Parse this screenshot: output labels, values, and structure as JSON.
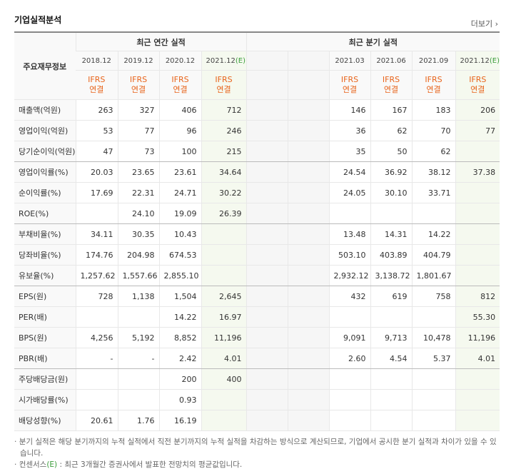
{
  "header": {
    "title": "기업실적분석",
    "more": "더보기"
  },
  "table": {
    "corner": "주요재무정보",
    "groups": [
      {
        "label": "최근 연간 실적",
        "span": 4
      },
      {
        "label": "최근 분기 실적",
        "span": 6
      }
    ],
    "columns": [
      {
        "period": "2018.12",
        "standard": "IFRS",
        "basis": "연결"
      },
      {
        "period": "2019.12",
        "standard": "IFRS",
        "basis": "연결"
      },
      {
        "period": "2020.12",
        "standard": "IFRS",
        "basis": "연결"
      },
      {
        "period": "2021.12",
        "estimate": "(E)",
        "standard": "IFRS",
        "basis": "연결"
      },
      null,
      null,
      {
        "period": "2021.03",
        "standard": "IFRS",
        "basis": "연결"
      },
      {
        "period": "2021.06",
        "standard": "IFRS",
        "basis": "연결"
      },
      {
        "period": "2021.09",
        "standard": "IFRS",
        "basis": "연결"
      },
      {
        "period": "2021.12",
        "estimate": "(E)",
        "standard": "IFRS",
        "basis": "연결"
      }
    ],
    "rows": [
      {
        "label": "매출액(억원)",
        "cells": [
          "263",
          "327",
          "406",
          "712",
          null,
          null,
          "146",
          "167",
          "183",
          "206"
        ]
      },
      {
        "label": "영업이익(억원)",
        "cells": [
          "53",
          "77",
          "96",
          "246",
          null,
          null,
          "36",
          "62",
          "70",
          "77"
        ]
      },
      {
        "label": "당기순이익(억원)",
        "cells": [
          "47",
          "73",
          "100",
          "215",
          null,
          null,
          "35",
          "50",
          "62",
          null
        ]
      },
      {
        "label": "영업이익률(%)",
        "cells": [
          "20.03",
          "23.65",
          "23.61",
          "34.64",
          null,
          null,
          "24.54",
          "36.92",
          "38.12",
          "37.38"
        ]
      },
      {
        "label": "순이익률(%)",
        "cells": [
          "17.69",
          "22.31",
          "24.71",
          "30.22",
          null,
          null,
          "24.05",
          "30.10",
          "33.71",
          null
        ]
      },
      {
        "label": "ROE(%)",
        "cells": [
          null,
          "24.10",
          "19.09",
          "26.39",
          null,
          null,
          null,
          null,
          null,
          null
        ]
      },
      {
        "label": "부채비율(%)",
        "cells": [
          "34.11",
          "30.35",
          "10.43",
          null,
          null,
          null,
          "13.48",
          "14.31",
          "14.22",
          null
        ]
      },
      {
        "label": "당좌비율(%)",
        "cells": [
          "174.76",
          "204.98",
          "674.53",
          null,
          null,
          null,
          "503.10",
          "403.89",
          "404.79",
          null
        ]
      },
      {
        "label": "유보율(%)",
        "cells": [
          "1,257.62",
          "1,557.66",
          "2,855.10",
          null,
          null,
          null,
          "2,932.12",
          "3,138.72",
          "1,801.67",
          null
        ]
      },
      {
        "label": "EPS(원)",
        "cells": [
          "728",
          "1,138",
          "1,504",
          "2,645",
          null,
          null,
          "432",
          "619",
          "758",
          "812"
        ]
      },
      {
        "label": "PER(배)",
        "cells": [
          null,
          null,
          "14.22",
          "16.97",
          null,
          null,
          null,
          null,
          null,
          "55.30"
        ]
      },
      {
        "label": "BPS(원)",
        "cells": [
          "4,256",
          "5,192",
          "8,852",
          "11,196",
          null,
          null,
          "9,091",
          "9,713",
          "10,478",
          "11,196"
        ]
      },
      {
        "label": "PBR(배)",
        "cells": [
          "-",
          "-",
          "2.42",
          "4.01",
          null,
          null,
          "2.60",
          "4.54",
          "5.37",
          "4.01"
        ]
      },
      {
        "label": "주당배당금(원)",
        "cells": [
          null,
          null,
          "200",
          "400",
          null,
          null,
          null,
          null,
          null,
          null
        ]
      },
      {
        "label": "시가배당률(%)",
        "cells": [
          null,
          null,
          "0.93",
          null,
          null,
          null,
          null,
          null,
          null,
          null
        ]
      },
      {
        "label": "배당성향(%)",
        "cells": [
          "20.61",
          "1.76",
          "16.19",
          null,
          null,
          null,
          null,
          null,
          null,
          null
        ]
      }
    ],
    "group_breaks": [
      3,
      6,
      9,
      13
    ]
  },
  "notes": [
    {
      "text": "분기 실적은 해당 분기까지의 누적 실적에서 직전 분기까지의 누적 실적을 차감하는 방식으로 계산되므로, 기업에서 공시한 분기 실적과 차이가 있을 수 있습니다."
    },
    {
      "term": "컨센서스",
      "estimate": "(E)",
      "text": ": 최근 3개월간 증권사에서 발표한 전망치의 평균값입니다."
    }
  ]
}
